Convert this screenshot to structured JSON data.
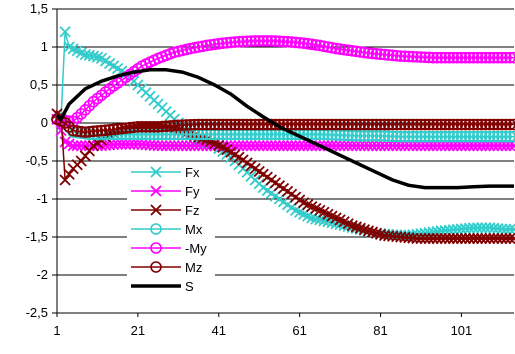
{
  "chart_data": {
    "type": "line",
    "title": "",
    "xlabel": "",
    "ylabel": "",
    "xlim": [
      1,
      114
    ],
    "ylim": [
      -2.5,
      1.5
    ],
    "x_ticks": [
      "1",
      "21",
      "41",
      "61",
      "81",
      "101"
    ],
    "y_ticks": [
      "1,5",
      "1",
      "0,5",
      "0",
      "-0,5",
      "-1",
      "-1,5",
      "-2",
      "-2,5"
    ],
    "grid": "horizontal",
    "legend_placement": "lower-left",
    "series": [
      {
        "name": "Fx",
        "color": "#33CCCC",
        "marker": "x",
        "points": [
          [
            1,
            0.05
          ],
          [
            2,
            0.05
          ],
          [
            3,
            1.2
          ],
          [
            4,
            1.0
          ],
          [
            6,
            0.95
          ],
          [
            8,
            0.9
          ],
          [
            10,
            0.88
          ],
          [
            12,
            0.85
          ],
          [
            15,
            0.75
          ],
          [
            18,
            0.65
          ],
          [
            21,
            0.5
          ],
          [
            24,
            0.35
          ],
          [
            27,
            0.2
          ],
          [
            30,
            0.05
          ],
          [
            33,
            -0.1
          ],
          [
            36,
            -0.22
          ],
          [
            40,
            -0.3
          ],
          [
            44,
            -0.45
          ],
          [
            48,
            -0.65
          ],
          [
            52,
            -0.85
          ],
          [
            56,
            -1.0
          ],
          [
            60,
            -1.15
          ],
          [
            64,
            -1.25
          ],
          [
            68,
            -1.3
          ],
          [
            72,
            -1.35
          ],
          [
            76,
            -1.4
          ],
          [
            80,
            -1.45
          ],
          [
            84,
            -1.47
          ],
          [
            88,
            -1.48
          ],
          [
            92,
            -1.45
          ],
          [
            96,
            -1.42
          ],
          [
            100,
            -1.4
          ],
          [
            104,
            -1.38
          ],
          [
            108,
            -1.38
          ],
          [
            112,
            -1.4
          ],
          [
            114,
            -1.4
          ]
        ]
      },
      {
        "name": "Fy",
        "color": "#FF00FF",
        "marker": "x",
        "points": [
          [
            1,
            0.05
          ],
          [
            3,
            -0.25
          ],
          [
            5,
            -0.3
          ],
          [
            8,
            -0.3
          ],
          [
            12,
            -0.3
          ],
          [
            16,
            -0.28
          ],
          [
            21,
            -0.28
          ],
          [
            26,
            -0.3
          ],
          [
            31,
            -0.3
          ],
          [
            36,
            -0.3
          ],
          [
            41,
            -0.3
          ],
          [
            46,
            -0.3
          ],
          [
            51,
            -0.3
          ],
          [
            56,
            -0.3
          ],
          [
            61,
            -0.3
          ],
          [
            66,
            -0.3
          ],
          [
            71,
            -0.3
          ],
          [
            76,
            -0.3
          ],
          [
            81,
            -0.3
          ],
          [
            86,
            -0.3
          ],
          [
            91,
            -0.3
          ],
          [
            96,
            -0.3
          ],
          [
            101,
            -0.3
          ],
          [
            106,
            -0.3
          ],
          [
            111,
            -0.3
          ],
          [
            114,
            -0.3
          ]
        ]
      },
      {
        "name": "Fz",
        "color": "#800000",
        "marker": "x",
        "points": [
          [
            1,
            0.12
          ],
          [
            2,
            0.1
          ],
          [
            3,
            -0.75
          ],
          [
            5,
            -0.6
          ],
          [
            7,
            -0.5
          ],
          [
            10,
            -0.3
          ],
          [
            14,
            -0.15
          ],
          [
            18,
            -0.08
          ],
          [
            22,
            -0.05
          ],
          [
            26,
            -0.05
          ],
          [
            30,
            -0.08
          ],
          [
            34,
            -0.15
          ],
          [
            38,
            -0.22
          ],
          [
            42,
            -0.32
          ],
          [
            46,
            -0.45
          ],
          [
            50,
            -0.6
          ],
          [
            54,
            -0.75
          ],
          [
            58,
            -0.9
          ],
          [
            62,
            -1.05
          ],
          [
            66,
            -1.15
          ],
          [
            70,
            -1.25
          ],
          [
            74,
            -1.35
          ],
          [
            78,
            -1.42
          ],
          [
            82,
            -1.48
          ],
          [
            86,
            -1.5
          ],
          [
            90,
            -1.52
          ],
          [
            94,
            -1.52
          ],
          [
            98,
            -1.52
          ],
          [
            102,
            -1.52
          ],
          [
            106,
            -1.52
          ],
          [
            110,
            -1.52
          ],
          [
            114,
            -1.52
          ]
        ]
      },
      {
        "name": "Mx",
        "color": "#33CCCC",
        "marker": "o",
        "points": [
          [
            1,
            0.05
          ],
          [
            3,
            0.0
          ],
          [
            5,
            -0.12
          ],
          [
            9,
            -0.15
          ],
          [
            13,
            -0.15
          ],
          [
            17,
            -0.15
          ],
          [
            21,
            -0.15
          ],
          [
            26,
            -0.15
          ],
          [
            31,
            -0.15
          ],
          [
            36,
            -0.15
          ],
          [
            41,
            -0.15
          ],
          [
            46,
            -0.15
          ],
          [
            51,
            -0.15
          ],
          [
            56,
            -0.15
          ],
          [
            61,
            -0.15
          ],
          [
            66,
            -0.15
          ],
          [
            71,
            -0.16
          ],
          [
            76,
            -0.17
          ],
          [
            81,
            -0.17
          ],
          [
            86,
            -0.18
          ],
          [
            91,
            -0.18
          ],
          [
            96,
            -0.18
          ],
          [
            101,
            -0.18
          ],
          [
            106,
            -0.18
          ],
          [
            111,
            -0.18
          ],
          [
            114,
            -0.18
          ]
        ]
      },
      {
        "name": "-My",
        "color": "#FF00FF",
        "marker": "o",
        "points": [
          [
            1,
            0.05
          ],
          [
            3,
            0.03
          ],
          [
            5,
            0.02
          ],
          [
            7,
            0.12
          ],
          [
            10,
            0.28
          ],
          [
            14,
            0.45
          ],
          [
            18,
            0.6
          ],
          [
            22,
            0.75
          ],
          [
            26,
            0.85
          ],
          [
            30,
            0.93
          ],
          [
            34,
            0.98
          ],
          [
            38,
            1.02
          ],
          [
            42,
            1.05
          ],
          [
            46,
            1.07
          ],
          [
            50,
            1.08
          ],
          [
            54,
            1.08
          ],
          [
            58,
            1.07
          ],
          [
            62,
            1.05
          ],
          [
            66,
            1.02
          ],
          [
            70,
            0.98
          ],
          [
            74,
            0.95
          ],
          [
            78,
            0.92
          ],
          [
            82,
            0.9
          ],
          [
            86,
            0.88
          ],
          [
            90,
            0.87
          ],
          [
            94,
            0.86
          ],
          [
            98,
            0.86
          ],
          [
            102,
            0.86
          ],
          [
            106,
            0.86
          ],
          [
            110,
            0.86
          ],
          [
            114,
            0.86
          ]
        ]
      },
      {
        "name": "Mz",
        "color": "#800000",
        "marker": "o",
        "points": [
          [
            1,
            0.05
          ],
          [
            3,
            0.0
          ],
          [
            5,
            -0.1
          ],
          [
            8,
            -0.12
          ],
          [
            12,
            -0.1
          ],
          [
            16,
            -0.08
          ],
          [
            21,
            -0.05
          ],
          [
            26,
            -0.05
          ],
          [
            31,
            -0.03
          ],
          [
            36,
            -0.02
          ],
          [
            41,
            -0.02
          ],
          [
            46,
            -0.02
          ],
          [
            51,
            -0.02
          ],
          [
            56,
            -0.02
          ],
          [
            61,
            -0.02
          ],
          [
            66,
            -0.02
          ],
          [
            71,
            -0.02
          ],
          [
            76,
            -0.02
          ],
          [
            81,
            -0.02
          ],
          [
            86,
            -0.02
          ],
          [
            91,
            -0.02
          ],
          [
            96,
            -0.02
          ],
          [
            101,
            -0.02
          ],
          [
            106,
            -0.02
          ],
          [
            111,
            -0.02
          ],
          [
            114,
            -0.02
          ]
        ]
      },
      {
        "name": "S",
        "color": "#000000",
        "marker": "none",
        "points": [
          [
            1,
            0.1
          ],
          [
            2,
            0.05
          ],
          [
            4,
            0.25
          ],
          [
            8,
            0.45
          ],
          [
            12,
            0.55
          ],
          [
            16,
            0.62
          ],
          [
            20,
            0.67
          ],
          [
            24,
            0.7
          ],
          [
            28,
            0.7
          ],
          [
            32,
            0.67
          ],
          [
            36,
            0.6
          ],
          [
            40,
            0.5
          ],
          [
            44,
            0.38
          ],
          [
            48,
            0.22
          ],
          [
            52,
            0.08
          ],
          [
            56,
            -0.05
          ],
          [
            60,
            -0.15
          ],
          [
            64,
            -0.25
          ],
          [
            68,
            -0.35
          ],
          [
            72,
            -0.45
          ],
          [
            76,
            -0.55
          ],
          [
            80,
            -0.65
          ],
          [
            84,
            -0.75
          ],
          [
            88,
            -0.82
          ],
          [
            92,
            -0.85
          ],
          [
            96,
            -0.85
          ],
          [
            100,
            -0.85
          ],
          [
            104,
            -0.84
          ],
          [
            108,
            -0.83
          ],
          [
            112,
            -0.83
          ],
          [
            114,
            -0.83
          ]
        ]
      }
    ]
  }
}
